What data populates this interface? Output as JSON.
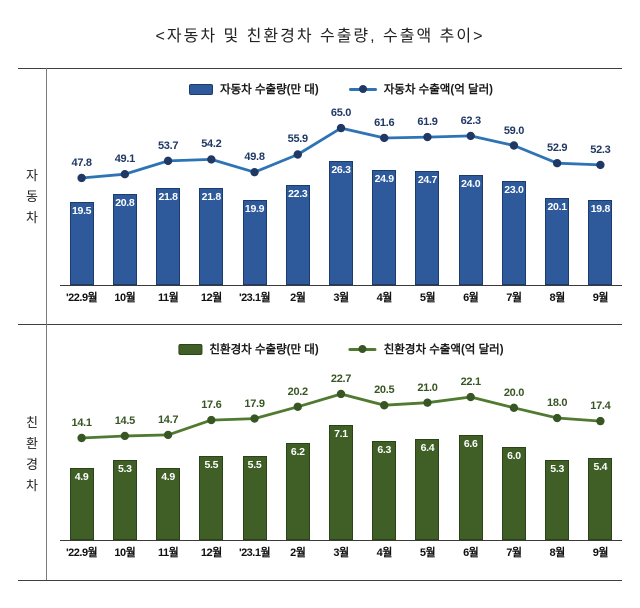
{
  "title": "<자동차 및 친환경차 수출량, 수출액 추이>",
  "row_labels": [
    "자동차",
    "친환경차"
  ],
  "chart_data": [
    {
      "type": "bar",
      "title": "자동차",
      "categories": [
        "'22.9월",
        "10월",
        "11월",
        "12월",
        "'23.1월",
        "2월",
        "3월",
        "4월",
        "5월",
        "6월",
        "7월",
        "8월",
        "9월"
      ],
      "series": [
        {
          "name": "자동차 수출량(만 대)",
          "kind": "bar",
          "values": [
            19.5,
            20.8,
            21.8,
            21.8,
            19.9,
            22.3,
            26.3,
            24.9,
            24.7,
            24.0,
            23.0,
            20.1,
            19.8
          ]
        },
        {
          "name": "자동차 수출액(억 달러)",
          "kind": "line",
          "values": [
            47.8,
            49.1,
            53.7,
            54.2,
            49.8,
            55.9,
            65.0,
            61.6,
            61.9,
            62.3,
            59.0,
            52.9,
            52.3
          ]
        }
      ],
      "legend_position": "top",
      "grid": false,
      "colors": {
        "bar_fill": "#2e5a9c",
        "bar_border": "#1c3c6e",
        "bar_label": "#ffffff",
        "line": "#2e74b5",
        "marker": "#1f3864",
        "line_label": "#1f3864"
      }
    },
    {
      "type": "bar",
      "title": "친환경차",
      "categories": [
        "'22.9월",
        "10월",
        "11월",
        "12월",
        "'23.1월",
        "2월",
        "3월",
        "4월",
        "5월",
        "6월",
        "7월",
        "8월",
        "9월"
      ],
      "series": [
        {
          "name": "친환경차 수출량(만 대)",
          "kind": "bar",
          "values": [
            4.9,
            5.3,
            4.9,
            5.5,
            5.5,
            6.2,
            7.1,
            6.3,
            6.4,
            6.6,
            6.0,
            5.3,
            5.4
          ]
        },
        {
          "name": "친환경차 수출액(억 달러)",
          "kind": "line",
          "values": [
            14.1,
            14.5,
            14.7,
            17.6,
            17.9,
            20.2,
            22.7,
            20.5,
            21.0,
            22.1,
            20.0,
            18.0,
            17.4
          ]
        }
      ],
      "legend_position": "top",
      "grid": false,
      "colors": {
        "bar_fill": "#3f5f27",
        "bar_border": "#2b4318",
        "bar_label": "#ffffff",
        "line": "#4f7a2f",
        "marker": "#375623",
        "line_label": "#375623"
      }
    }
  ]
}
